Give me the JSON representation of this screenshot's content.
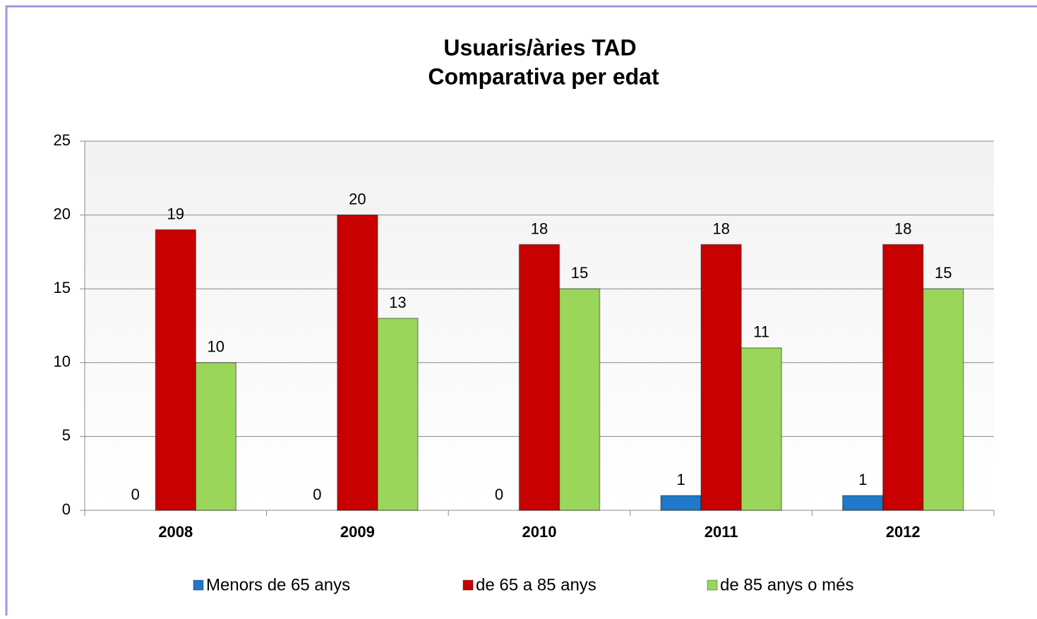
{
  "chart_data": {
    "type": "bar",
    "title": "Usuaris/àries TAD",
    "subtitle": "Comparativa per edat",
    "categories": [
      "2008",
      "2009",
      "2010",
      "2011",
      "2012"
    ],
    "series": [
      {
        "name": "Menors de 65 anys",
        "color": "#1f78c8",
        "values": [
          0,
          0,
          0,
          1,
          1
        ]
      },
      {
        "name": "de 65 a 85 anys",
        "color": "#c80000",
        "values": [
          19,
          20,
          18,
          18,
          18
        ]
      },
      {
        "name": "de 85 anys o més",
        "color": "#99d65a",
        "values": [
          10,
          13,
          15,
          11,
          15
        ]
      }
    ],
    "ylim": [
      0,
      25
    ],
    "yticks": [
      0,
      5,
      10,
      15,
      20,
      25
    ],
    "grid": true,
    "legend": "bottom"
  }
}
